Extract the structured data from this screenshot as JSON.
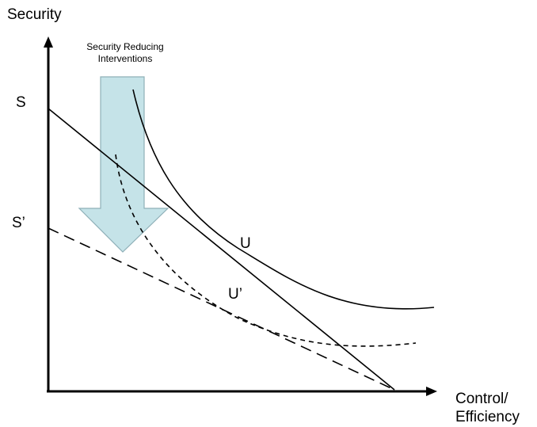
{
  "axes": {
    "y_label": "Security",
    "x_label_line1": "Control/",
    "x_label_line2": "Efficiency"
  },
  "arrow": {
    "label_line1": "Security Reducing",
    "label_line2": "Interventions",
    "fill_color": "#c5e3e8",
    "stroke_color": "#8fb0b8"
  },
  "points": {
    "S": "S",
    "S_prime": "S’",
    "U": "U",
    "U_prime": "U’"
  },
  "colors": {
    "line": "#000000"
  }
}
